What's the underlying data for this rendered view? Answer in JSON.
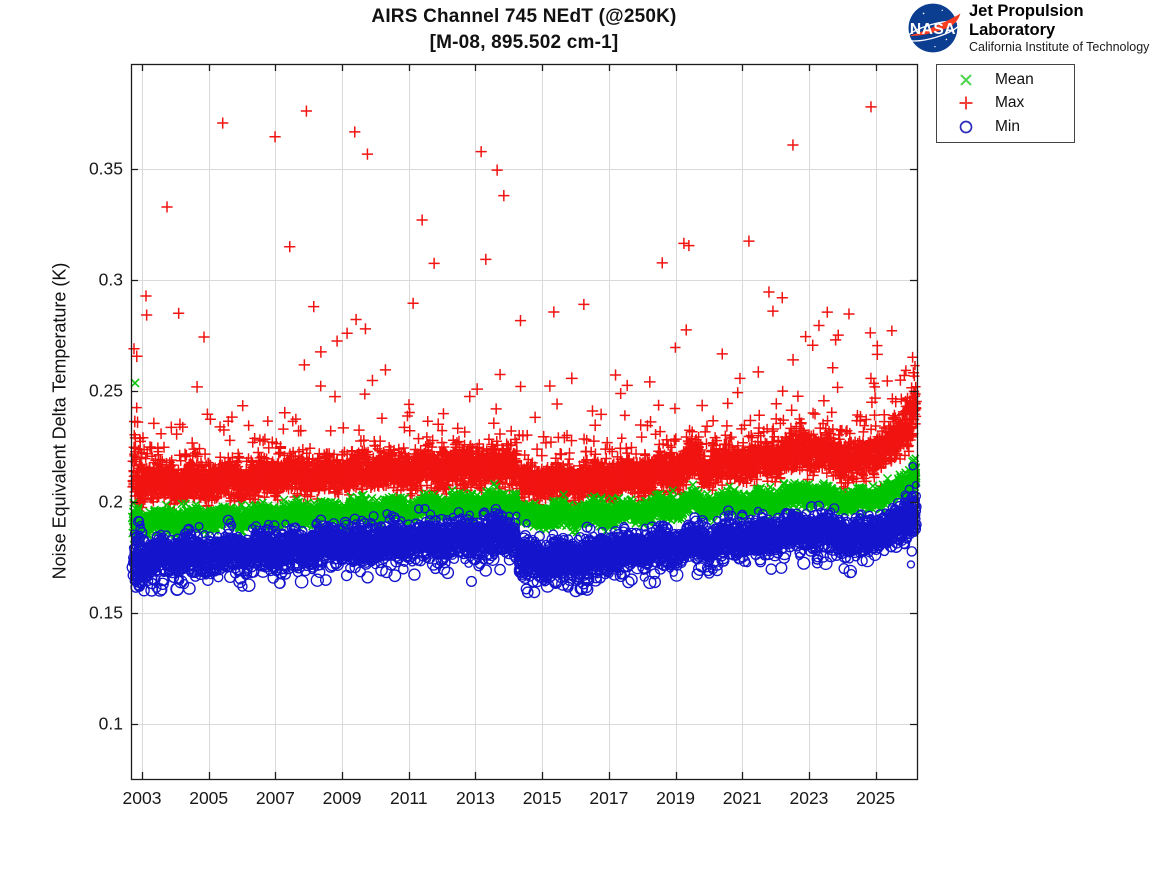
{
  "header": {
    "title_line1": "AIRS Channel 745 NEdT (@250K)",
    "title_line2": "[M-08, 895.502 cm-1]"
  },
  "branding": {
    "nasa_word": "NASA",
    "org_name": "Jet Propulsion Laboratory",
    "org_sub": "California Institute of Technology",
    "nasa_blue": "#0b3d91",
    "nasa_red": "#fc3d21"
  },
  "legend": {
    "position": "outside-top-right",
    "items": [
      {
        "label": "Mean",
        "marker": "x",
        "color": "#00c400"
      },
      {
        "label": "Max",
        "marker": "+",
        "color": "#f01310"
      },
      {
        "label": "Min",
        "marker": "o",
        "color": "#1414cc"
      }
    ]
  },
  "chart_data": {
    "type": "scatter",
    "title": "AIRS Channel 745 NEdT (@250K)",
    "subtitle": "[M-08, 895.502 cm-1]",
    "xlabel": "",
    "ylabel": "Noise Equivalent Delta Temperature (K)",
    "xlim": [
      2002.67,
      2026.24
    ],
    "ylim": [
      0.0752,
      0.3973
    ],
    "xticks": [
      2003,
      2005,
      2007,
      2009,
      2011,
      2013,
      2015,
      2017,
      2019,
      2021,
      2023,
      2025
    ],
    "yticks": [
      0.1,
      0.15,
      0.2,
      0.25,
      0.3,
      0.35
    ],
    "ytick_labels": [
      "0.1",
      "0.15",
      "0.2",
      "0.25",
      "0.3",
      "0.35"
    ],
    "grid": true,
    "grid_color": "#d9d9d9",
    "axis_color": "#1c1c1c",
    "time_range": [
      2002.72,
      2026.22
    ],
    "data_gap": [
      2014.245,
      2014.3
    ],
    "samples_per_series": 6200,
    "seed": 20745,
    "wiggle": {
      "annual_amp": 0.0013,
      "annual_phase": 0.28,
      "fast_amp": 0.0006,
      "fast_freq": 2.6
    },
    "series": [
      {
        "name": "Max",
        "marker": "+",
        "color": "#f01310",
        "sigma": 0.0044,
        "trend": [
          [
            2002.72,
            0.2115
          ],
          [
            2003.0,
            0.2095
          ],
          [
            2004,
            0.209
          ],
          [
            2006,
            0.2105
          ],
          [
            2008,
            0.2125
          ],
          [
            2010,
            0.214
          ],
          [
            2012,
            0.2155
          ],
          [
            2013.5,
            0.2165
          ],
          [
            2014.24,
            0.217
          ],
          [
            2014.3,
            0.2085
          ],
          [
            2015,
            0.2085
          ],
          [
            2016,
            0.2095
          ],
          [
            2017,
            0.2105
          ],
          [
            2018,
            0.2125
          ],
          [
            2019.2,
            0.215
          ],
          [
            2019.55,
            0.219
          ],
          [
            2019.9,
            0.2155
          ],
          [
            2021,
            0.2175
          ],
          [
            2022,
            0.2195
          ],
          [
            2022.8,
            0.2235
          ],
          [
            2023.4,
            0.222
          ],
          [
            2024.3,
            0.2185
          ],
          [
            2024.9,
            0.2215
          ],
          [
            2025.5,
            0.2255
          ],
          [
            2025.9,
            0.234
          ],
          [
            2026.22,
            0.246
          ]
        ],
        "upper_tail": {
          "base_prob": 0.03,
          "late_prob_add": 0.028,
          "offset": 0.011,
          "scale": 0.011,
          "cap": 0.044
        },
        "outliers": [
          [
            2002.76,
            0.269
          ],
          [
            2003.12,
            0.2928
          ],
          [
            2003.14,
            0.2842
          ],
          [
            2003.75,
            0.3329
          ],
          [
            2004.1,
            0.285
          ],
          [
            2004.86,
            0.2743
          ],
          [
            2005.42,
            0.3707
          ],
          [
            2006.99,
            0.3645
          ],
          [
            2007.43,
            0.315
          ],
          [
            2007.93,
            0.3761
          ],
          [
            2008.15,
            0.288
          ],
          [
            2008.85,
            0.2725
          ],
          [
            2009.15,
            0.276
          ],
          [
            2009.38,
            0.3667
          ],
          [
            2009.42,
            0.2822
          ],
          [
            2009.7,
            0.278
          ],
          [
            2009.76,
            0.3567
          ],
          [
            2010.3,
            0.2595
          ],
          [
            2011.13,
            0.2895
          ],
          [
            2011.4,
            0.327
          ],
          [
            2011.76,
            0.3075
          ],
          [
            2013.17,
            0.3578
          ],
          [
            2013.31,
            0.3093
          ],
          [
            2013.65,
            0.3495
          ],
          [
            2013.85,
            0.338
          ],
          [
            2014.35,
            0.2817
          ],
          [
            2015.35,
            0.2856
          ],
          [
            2016.25,
            0.289
          ],
          [
            2017.2,
            0.2572
          ],
          [
            2017.55,
            0.2525
          ],
          [
            2018.6,
            0.3077
          ],
          [
            2019.25,
            0.3165
          ],
          [
            2019.4,
            0.3155
          ],
          [
            2019.32,
            0.2775
          ],
          [
            2020.4,
            0.2667
          ],
          [
            2021.2,
            0.3175
          ],
          [
            2021.8,
            0.2946
          ],
          [
            2021.92,
            0.286
          ],
          [
            2022.2,
            0.292
          ],
          [
            2022.52,
            0.3608
          ],
          [
            2022.9,
            0.2745
          ],
          [
            2023.3,
            0.2795
          ],
          [
            2023.55,
            0.2855
          ],
          [
            2023.8,
            0.273
          ],
          [
            2024.2,
            0.2847
          ],
          [
            2024.86,
            0.378
          ],
          [
            2025.05,
            0.2665
          ],
          [
            2025.35,
            0.2545
          ]
        ]
      },
      {
        "name": "Mean",
        "marker": "x",
        "color": "#00c400",
        "sigma": 0.0022,
        "trend": [
          [
            2002.72,
            0.1912
          ],
          [
            2003.0,
            0.1908
          ],
          [
            2004,
            0.1915
          ],
          [
            2006,
            0.193
          ],
          [
            2008,
            0.1945
          ],
          [
            2010,
            0.196
          ],
          [
            2012,
            0.1975
          ],
          [
            2013.5,
            0.1988
          ],
          [
            2014.24,
            0.1995
          ],
          [
            2014.3,
            0.1938
          ],
          [
            2015,
            0.1938
          ],
          [
            2016,
            0.1942
          ],
          [
            2017,
            0.1948
          ],
          [
            2018,
            0.196
          ],
          [
            2019.2,
            0.1978
          ],
          [
            2019.55,
            0.2008
          ],
          [
            2019.9,
            0.1978
          ],
          [
            2021,
            0.1992
          ],
          [
            2022,
            0.2005
          ],
          [
            2022.8,
            0.2035
          ],
          [
            2023.4,
            0.2022
          ],
          [
            2024.3,
            0.2002
          ],
          [
            2024.9,
            0.2018
          ],
          [
            2025.5,
            0.204
          ],
          [
            2025.9,
            0.2075
          ],
          [
            2026.22,
            0.214
          ]
        ],
        "upper_tail": {
          "base_prob": 0.006,
          "late_prob_add": 0.0,
          "offset": 0.0015,
          "scale": 0.002,
          "cap": 0.005
        },
        "outliers": [
          [
            2002.79,
            0.2536
          ]
        ]
      },
      {
        "name": "Min",
        "marker": "o",
        "color": "#1414cc",
        "sigma": 0.004,
        "trend": [
          [
            2002.72,
            0.176
          ],
          [
            2003.0,
            0.1755
          ],
          [
            2004,
            0.1762
          ],
          [
            2006,
            0.1778
          ],
          [
            2008,
            0.1798
          ],
          [
            2010,
            0.1818
          ],
          [
            2012,
            0.1835
          ],
          [
            2013.5,
            0.1848
          ],
          [
            2014.24,
            0.1855
          ],
          [
            2014.3,
            0.1748
          ],
          [
            2015,
            0.1748
          ],
          [
            2016,
            0.1755
          ],
          [
            2017,
            0.177
          ],
          [
            2018,
            0.179
          ],
          [
            2019.2,
            0.1805
          ],
          [
            2019.55,
            0.1838
          ],
          [
            2019.9,
            0.1808
          ],
          [
            2021,
            0.1835
          ],
          [
            2022,
            0.1852
          ],
          [
            2022.8,
            0.188
          ],
          [
            2023.4,
            0.1868
          ],
          [
            2024.3,
            0.184
          ],
          [
            2024.9,
            0.1858
          ],
          [
            2025.5,
            0.1885
          ],
          [
            2025.9,
            0.1918
          ],
          [
            2026.22,
            0.196
          ]
        ],
        "lower_tail": {
          "base_prob": 0.04,
          "boost_window": [
            2014.3,
            2016.9
          ],
          "boost_add": 0.05,
          "offset": 0.0045,
          "scale": 0.0045,
          "cap": 0.011
        },
        "outliers": [
          [
            2002.9,
            0.1638
          ],
          [
            2003.3,
            0.1652
          ],
          [
            2003.95,
            0.166
          ],
          [
            2004.6,
            0.1665
          ],
          [
            2005.8,
            0.168
          ],
          [
            2007.9,
            0.169
          ],
          [
            2009.55,
            0.1685
          ],
          [
            2011.8,
            0.17
          ],
          [
            2012.88,
            0.1642
          ],
          [
            2013.1,
            0.1712
          ],
          [
            2014.52,
            0.1608
          ],
          [
            2014.85,
            0.164
          ],
          [
            2015.55,
            0.166
          ],
          [
            2016.3,
            0.168
          ],
          [
            2017.45,
            0.1705
          ],
          [
            2019.05,
            0.1715
          ],
          [
            2020.25,
            0.169
          ],
          [
            2021.55,
            0.173
          ],
          [
            2023.25,
            0.1725
          ],
          [
            2024.05,
            0.17
          ],
          [
            2024.6,
            0.1735
          ]
        ]
      }
    ]
  }
}
